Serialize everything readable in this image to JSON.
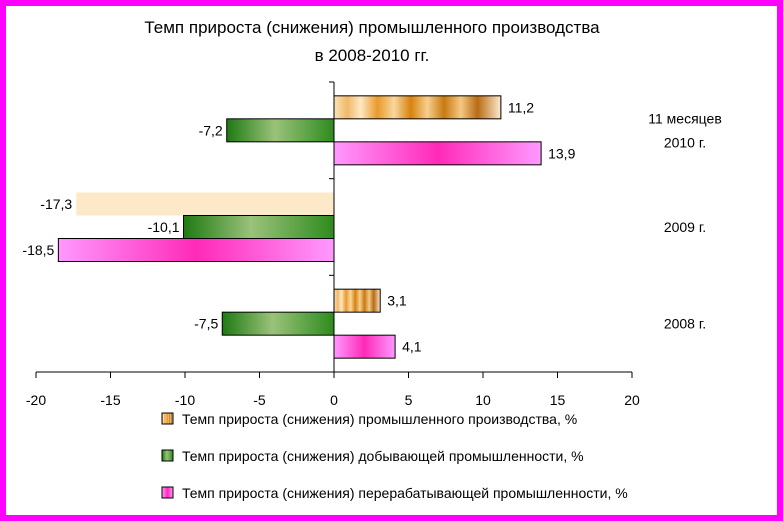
{
  "chart_data": {
    "type": "bar",
    "orientation": "horizontal",
    "title_lines": [
      "Темп прироста (снижения) промышленного производства",
      "в 2008-2010 гг."
    ],
    "categories": [
      {
        "id": "11m2010",
        "label_lines": [
          "11 месяцев",
          "2010 г."
        ]
      },
      {
        "id": "2009",
        "label_lines": [
          "2009 г."
        ]
      },
      {
        "id": "2008",
        "label_lines": [
          "2008 г."
        ]
      }
    ],
    "series": [
      {
        "name": "Темп прироста (снижения) промышленного производства, %",
        "key": "industrial",
        "values": [
          11.2,
          -17.3,
          3.1
        ],
        "labels": [
          "11,2",
          "-17,3",
          "3,1"
        ]
      },
      {
        "name": "Темп прироста (снижения) добывающей промышленности, %",
        "key": "mining",
        "values": [
          -7.2,
          -10.1,
          -7.5
        ],
        "labels": [
          "-7,2",
          "-10,1",
          "-7,5"
        ]
      },
      {
        "name": "Темп прироста (снижения) перерабатывающей промышленности, %",
        "key": "manufacturing",
        "values": [
          13.9,
          -18.5,
          4.1
        ],
        "labels": [
          "13,9",
          "-18,5",
          "4,1"
        ]
      }
    ],
    "xlim": [
      -20,
      20
    ],
    "xticks": [
      -20,
      -15,
      -10,
      -5,
      0,
      5,
      10,
      15,
      20
    ],
    "xtick_labels": [
      "-20",
      "-15",
      "-10",
      "-5",
      "0",
      "5",
      "10",
      "15",
      "20"
    ],
    "grid": false,
    "legend_position": "bottom"
  },
  "colors": {
    "frame": "#ff00ff",
    "industrial": "#f5d49a",
    "industrial_dark": "#d8820c",
    "industrial_flat": "#fbe9c8",
    "mining": "#2e8b1e",
    "mining_light": "#9ac27a",
    "manufacturing": "#ff33cc",
    "manufacturing_light": "#ff99ff"
  }
}
